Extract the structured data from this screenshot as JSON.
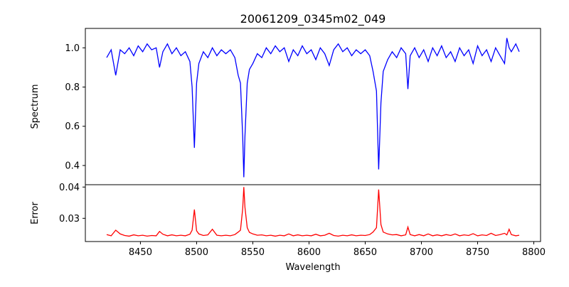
{
  "chart_data": [
    {
      "type": "line",
      "title": "20061209_0345m02_049",
      "xlabel": "",
      "ylabel": "Spectrum",
      "xlim": [
        8401,
        8806
      ],
      "ylim": [
        0.302,
        1.099
      ],
      "yticks": [
        0.4,
        0.6,
        0.8,
        1.0
      ],
      "ytick_labels": [
        "0.4",
        "0.6",
        "0.8",
        "1.0"
      ],
      "color": "#0000ff",
      "series_name": "spectrum"
    },
    {
      "type": "line",
      "title": "",
      "xlabel": "Wavelength",
      "ylabel": "Error",
      "xlim": [
        8401,
        8806
      ],
      "ylim": [
        0.02257,
        0.04075
      ],
      "xticks": [
        8450,
        8500,
        8550,
        8600,
        8650,
        8700,
        8750,
        8800
      ],
      "xtick_labels": [
        "8450",
        "8500",
        "8550",
        "8600",
        "8650",
        "8700",
        "8750",
        "8800"
      ],
      "yticks": [
        0.03,
        0.04
      ],
      "ytick_labels": [
        "0.03",
        "0.04"
      ],
      "color": "#ff0000",
      "series_name": "error"
    }
  ],
  "points_columns": [
    "wavelength",
    "spectrum",
    "error"
  ],
  "points": [
    [
      8420,
      0.95,
      0.0248
    ],
    [
      8424,
      0.99,
      0.0244
    ],
    [
      8428,
      0.86,
      0.0262
    ],
    [
      8432,
      0.99,
      0.025
    ],
    [
      8436,
      0.97,
      0.0245
    ],
    [
      8440,
      1.0,
      0.0243
    ],
    [
      8444,
      0.96,
      0.0247
    ],
    [
      8448,
      1.01,
      0.0244
    ],
    [
      8452,
      0.98,
      0.0246
    ],
    [
      8456,
      1.02,
      0.0243
    ],
    [
      8460,
      0.99,
      0.0245
    ],
    [
      8464,
      1.0,
      0.0244
    ],
    [
      8467,
      0.9,
      0.0258
    ],
    [
      8470,
      0.98,
      0.0249
    ],
    [
      8474,
      1.02,
      0.0244
    ],
    [
      8478,
      0.97,
      0.0247
    ],
    [
      8482,
      1.0,
      0.0244
    ],
    [
      8486,
      0.96,
      0.0246
    ],
    [
      8490,
      0.98,
      0.0244
    ],
    [
      8494,
      0.93,
      0.0249
    ],
    [
      8496,
      0.8,
      0.0262
    ],
    [
      8498,
      0.49,
      0.0328
    ],
    [
      8500,
      0.82,
      0.026
    ],
    [
      8502,
      0.92,
      0.025
    ],
    [
      8506,
      0.98,
      0.0245
    ],
    [
      8510,
      0.95,
      0.0247
    ],
    [
      8514,
      1.0,
      0.0265
    ],
    [
      8518,
      0.96,
      0.0246
    ],
    [
      8522,
      0.99,
      0.0244
    ],
    [
      8526,
      0.97,
      0.0246
    ],
    [
      8530,
      0.99,
      0.0244
    ],
    [
      8534,
      0.95,
      0.0248
    ],
    [
      8537,
      0.86,
      0.0256
    ],
    [
      8539,
      0.82,
      0.0262
    ],
    [
      8541,
      0.55,
      0.033
    ],
    [
      8542,
      0.34,
      0.04
    ],
    [
      8543,
      0.55,
      0.0335
    ],
    [
      8545,
      0.82,
      0.027
    ],
    [
      8547,
      0.89,
      0.0255
    ],
    [
      8550,
      0.92,
      0.025
    ],
    [
      8554,
      0.97,
      0.0246
    ],
    [
      8558,
      0.95,
      0.0247
    ],
    [
      8562,
      1.0,
      0.0244
    ],
    [
      8566,
      0.97,
      0.0246
    ],
    [
      8570,
      1.01,
      0.0243
    ],
    [
      8574,
      0.98,
      0.0246
    ],
    [
      8578,
      1.0,
      0.0244
    ],
    [
      8582,
      0.93,
      0.025
    ],
    [
      8586,
      0.99,
      0.0244
    ],
    [
      8590,
      0.96,
      0.0247
    ],
    [
      8594,
      1.01,
      0.0244
    ],
    [
      8598,
      0.97,
      0.0246
    ],
    [
      8602,
      0.99,
      0.0244
    ],
    [
      8606,
      0.94,
      0.0249
    ],
    [
      8610,
      1.0,
      0.0244
    ],
    [
      8614,
      0.97,
      0.0246
    ],
    [
      8618,
      0.91,
      0.0252
    ],
    [
      8622,
      0.99,
      0.0245
    ],
    [
      8626,
      1.02,
      0.0243
    ],
    [
      8630,
      0.98,
      0.0246
    ],
    [
      8634,
      1.0,
      0.0244
    ],
    [
      8638,
      0.96,
      0.0247
    ],
    [
      8642,
      0.99,
      0.0244
    ],
    [
      8646,
      0.97,
      0.0246
    ],
    [
      8650,
      0.99,
      0.0245
    ],
    [
      8654,
      0.96,
      0.0248
    ],
    [
      8657,
      0.88,
      0.0256
    ],
    [
      8660,
      0.78,
      0.027
    ],
    [
      8662,
      0.38,
      0.0392
    ],
    [
      8664,
      0.72,
      0.028
    ],
    [
      8666,
      0.88,
      0.0256
    ],
    [
      8670,
      0.94,
      0.025
    ],
    [
      8674,
      0.98,
      0.0247
    ],
    [
      8678,
      0.95,
      0.0248
    ],
    [
      8682,
      1.0,
      0.0244
    ],
    [
      8686,
      0.97,
      0.0247
    ],
    [
      8688,
      0.79,
      0.0272
    ],
    [
      8690,
      0.96,
      0.0248
    ],
    [
      8694,
      1.0,
      0.0244
    ],
    [
      8698,
      0.95,
      0.0248
    ],
    [
      8702,
      0.99,
      0.0244
    ],
    [
      8706,
      0.93,
      0.025
    ],
    [
      8710,
      1.0,
      0.0244
    ],
    [
      8714,
      0.96,
      0.0247
    ],
    [
      8718,
      1.01,
      0.0244
    ],
    [
      8722,
      0.95,
      0.0248
    ],
    [
      8726,
      0.98,
      0.0245
    ],
    [
      8730,
      0.93,
      0.025
    ],
    [
      8734,
      1.0,
      0.0244
    ],
    [
      8738,
      0.96,
      0.0247
    ],
    [
      8742,
      0.99,
      0.0245
    ],
    [
      8746,
      0.92,
      0.0251
    ],
    [
      8750,
      1.01,
      0.0244
    ],
    [
      8754,
      0.96,
      0.0247
    ],
    [
      8758,
      0.99,
      0.0245
    ],
    [
      8762,
      0.93,
      0.0252
    ],
    [
      8766,
      1.0,
      0.0245
    ],
    [
      8770,
      0.96,
      0.0248
    ],
    [
      8774,
      0.92,
      0.0252
    ],
    [
      8776,
      1.05,
      0.0247
    ],
    [
      8778,
      1.0,
      0.0265
    ],
    [
      8780,
      0.98,
      0.0248
    ],
    [
      8784,
      1.02,
      0.0244
    ],
    [
      8787,
      0.98,
      0.0246
    ]
  ]
}
